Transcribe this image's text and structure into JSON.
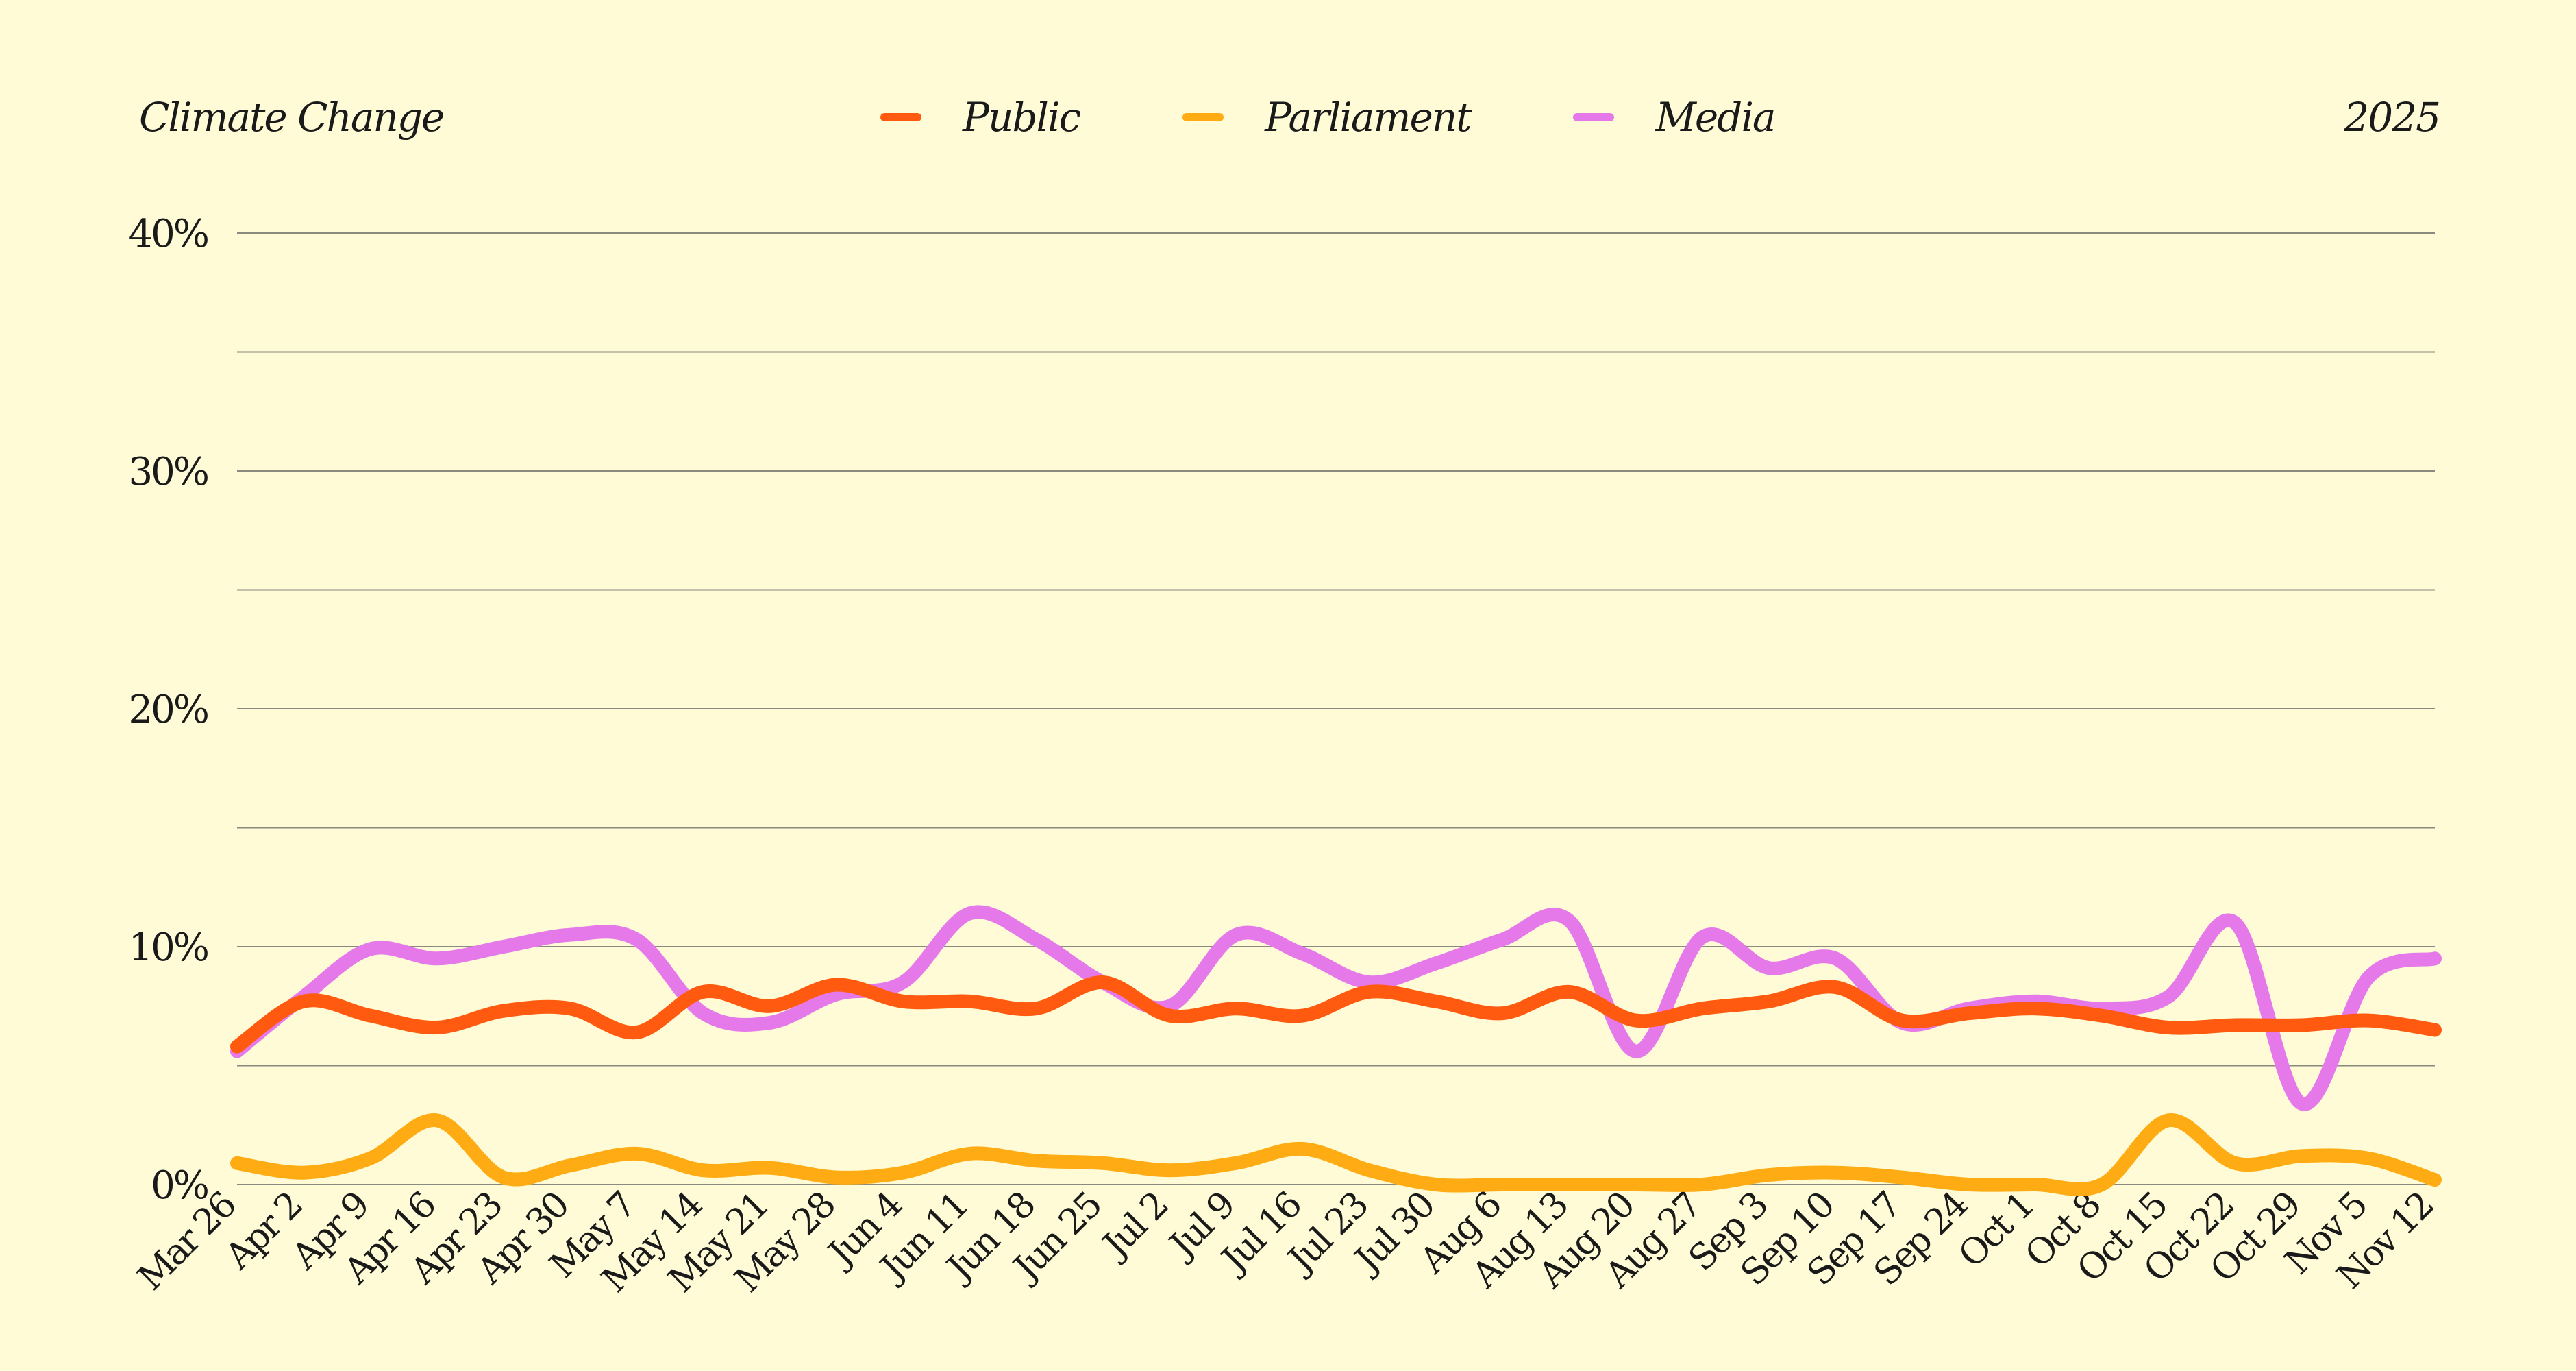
{
  "header": {
    "title": "Climate Change",
    "year": "2025"
  },
  "colors": {
    "background": "#fefbd6",
    "grid": "#8a8a80",
    "text": "#1a1a1a"
  },
  "chart_data": {
    "type": "line",
    "title": "Climate Change",
    "subtitle": "2025",
    "xlabel": "",
    "ylabel": "",
    "ylim": [
      0,
      40
    ],
    "y_ticks": [
      0,
      10,
      20,
      30,
      40
    ],
    "y_tick_labels": [
      "0%",
      "10%",
      "20%",
      "30%",
      "40%"
    ],
    "grid": true,
    "legend_position": "top-center",
    "x": [
      "Mar 26",
      "Apr 2",
      "Apr 9",
      "Apr 16",
      "Apr 23",
      "Apr 30",
      "May 7",
      "May 14",
      "May 21",
      "May 28",
      "Jun 4",
      "Jun 11",
      "Jun 18",
      "Jun 25",
      "Jul 2",
      "Jul 9",
      "Jul 16",
      "Jul 23",
      "Jul 30",
      "Aug 6",
      "Aug 13",
      "Aug 20",
      "Aug 27",
      "Sep 3",
      "Sep 10",
      "Sep 17",
      "Sep 24",
      "Oct 1",
      "Oct 8",
      "Oct 15",
      "Oct 22",
      "Oct 29",
      "Nov 5",
      "Nov 12"
    ],
    "series": [
      {
        "name": "Public",
        "color": "#ff5a0f",
        "values": [
          5.8,
          7.7,
          7.1,
          6.6,
          7.3,
          7.4,
          6.4,
          8.1,
          7.5,
          8.4,
          7.7,
          7.7,
          7.4,
          8.5,
          7.1,
          7.4,
          7.1,
          8.1,
          7.7,
          7.2,
          8.1,
          6.9,
          7.4,
          7.7,
          8.3,
          6.9,
          7.2,
          7.4,
          7.1,
          6.6,
          6.7,
          6.7,
          6.9,
          6.5
        ]
      },
      {
        "name": "Parliament",
        "color": "#ffac14",
        "values": [
          0.9,
          0.5,
          1.1,
          2.7,
          0.3,
          0.8,
          1.3,
          0.6,
          0.7,
          0.3,
          0.5,
          1.3,
          1.0,
          0.9,
          0.6,
          0.9,
          1.5,
          0.6,
          0.0,
          0.0,
          0.0,
          0.0,
          0.0,
          0.4,
          0.5,
          0.3,
          0.0,
          0.0,
          0.0,
          2.7,
          0.9,
          1.2,
          1.1,
          0.2
        ]
      },
      {
        "name": "Media",
        "color": "#e679ea",
        "values": [
          5.6,
          7.9,
          9.9,
          9.5,
          10.0,
          10.5,
          10.3,
          7.2,
          6.8,
          8.0,
          8.5,
          11.4,
          10.3,
          8.5,
          7.5,
          10.5,
          9.7,
          8.5,
          9.3,
          10.3,
          11.1,
          5.6,
          10.4,
          9.1,
          9.5,
          6.8,
          7.4,
          7.7,
          7.4,
          7.9,
          11.0,
          3.4,
          8.7,
          9.5
        ]
      }
    ]
  }
}
